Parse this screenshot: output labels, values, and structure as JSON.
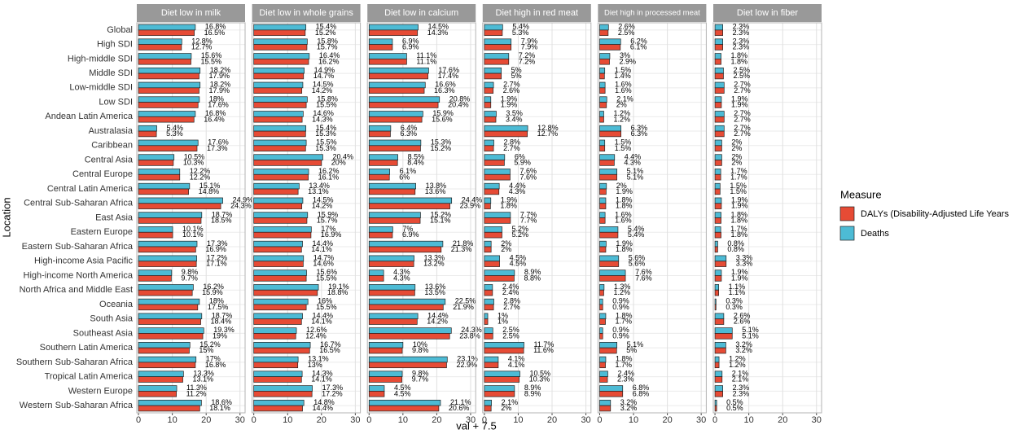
{
  "chart_data": {
    "type": "bar",
    "orientation": "horizontal",
    "x_label": "val + 7.5",
    "y_label": "Location",
    "legend_title": "Measure",
    "legend_position": "right",
    "grid": true,
    "xlim": [
      -0.5,
      31.5
    ],
    "xticks": [
      0,
      10,
      20,
      30
    ],
    "categories": [
      "Global",
      "High SDI",
      "High-middle SDI",
      "Middle SDI",
      "Low-middle SDI",
      "Low SDI",
      "Andean Latin America",
      "Australasia",
      "Caribbean",
      "Central Asia",
      "Central Europe",
      "Central Latin America",
      "Central Sub-Saharan Africa",
      "East Asia",
      "Eastern Europe",
      "Eastern Sub-Saharan Africa",
      "High-income Asia Pacific",
      "High-income North America",
      "North Africa and Middle East",
      "Oceania",
      "South Asia",
      "Southeast Asia",
      "Southern Latin America",
      "Southern Sub-Saharan Africa",
      "Tropical Latin America",
      "Western Europe",
      "Western Sub-Saharan Africa"
    ],
    "series": [
      {
        "name": "DALYs (Disability-Adjusted Life Years",
        "color": "#e64b35"
      },
      {
        "name": "Deaths",
        "color": "#4dbbd5"
      }
    ],
    "facets": [
      {
        "title": "Diet low in milk",
        "series": [
          {
            "values": [
              16.5,
              12.7,
              15.5,
              17.9,
              17.9,
              17.6,
              16.4,
              5.3,
              17.3,
              10.3,
              12.2,
              14.8,
              24.3,
              18.5,
              10.1,
              16.9,
              17.1,
              9.7,
              15.9,
              17.5,
              18.4,
              19,
              15,
              16.8,
              13.1,
              11.2,
              18.1
            ],
            "value_labels": [
              "16.5%",
              "12.7%",
              "15.5%",
              "17.9%",
              "17.9%",
              "17.6%",
              "16.4%",
              "5.3%",
              "17.3%",
              "10.3%",
              "12.2%",
              "14.8%",
              "24.3%",
              "18.5%",
              "10.1%",
              "16.9%",
              "17.1%",
              "9.7%",
              "15.9%",
              "17.5%",
              "18.4%",
              "19%",
              "15%",
              "16.8%",
              "13.1%",
              "11.2%",
              "18.1%"
            ]
          },
          {
            "values": [
              16.8,
              12.8,
              15.6,
              18.2,
              18.2,
              18,
              16.8,
              5.4,
              17.6,
              10.5,
              12.2,
              15.1,
              24.9,
              18.7,
              10.1,
              17.3,
              17.2,
              9.8,
              16.2,
              18,
              18.7,
              19.3,
              15.2,
              17,
              13.3,
              11.3,
              18.6
            ],
            "value_labels": [
              "16.8%",
              "12.8%",
              "15.6%",
              "18.2%",
              "18.2%",
              "18%",
              "16.8%",
              "5.4%",
              "17.6%",
              "10.5%",
              "12.2%",
              "15.1%",
              "24.9%",
              "18.7%",
              "10.1%",
              "17.3%",
              "17.2%",
              "9.8%",
              "16.2%",
              "18%",
              "18.7%",
              "19.3%",
              "15.2%",
              "17%",
              "13.3%",
              "11.3%",
              "18.6%"
            ]
          }
        ]
      },
      {
        "title": "Diet low in whole grains",
        "series": [
          {
            "values": [
              15.2,
              15.7,
              16.2,
              14.7,
              14.2,
              15.5,
              14.3,
              15.3,
              15.3,
              20,
              16.1,
              13.1,
              14.2,
              15.7,
              16.9,
              14.1,
              14.6,
              15.5,
              18.8,
              15.5,
              14.1,
              12.4,
              16.5,
              13,
              14.1,
              17.2,
              14.4
            ],
            "value_labels": [
              "15.2%",
              "15.7%",
              "16.2%",
              "14.7%",
              "14.2%",
              "15.5%",
              "14.3%",
              "15.3%",
              "15.3%",
              "20%",
              "16.1%",
              "13.1%",
              "14.2%",
              "15.7%",
              "16.9%",
              "14.1%",
              "14.6%",
              "15.5%",
              "18.8%",
              "15.5%",
              "14.1%",
              "12.4%",
              "16.5%",
              "13%",
              "14.1%",
              "17.2%",
              "14.4%"
            ]
          },
          {
            "values": [
              15.4,
              15.8,
              16.4,
              14.9,
              14.5,
              15.8,
              14.6,
              15.4,
              15.5,
              20.4,
              16.2,
              13.4,
              14.5,
              15.9,
              17,
              14.4,
              14.7,
              15.6,
              19.1,
              16,
              14.4,
              12.6,
              16.7,
              13.1,
              14.3,
              17.3,
              14.8
            ],
            "value_labels": [
              "15.4%",
              "15.8%",
              "16.4%",
              "14.9%",
              "14.5%",
              "15.8%",
              "14.6%",
              "15.4%",
              "15.5%",
              "20.4%",
              "16.2%",
              "13.4%",
              "14.5%",
              "15.9%",
              "17%",
              "14.4%",
              "14.7%",
              "15.6%",
              "19.1%",
              "16%",
              "14.4%",
              "12.6%",
              "16.7%",
              "13.1%",
              "14.3%",
              "17.3%",
              "14.8%"
            ]
          }
        ]
      },
      {
        "title": "Diet low in calcium",
        "series": [
          {
            "values": [
              14.3,
              6.9,
              11.1,
              17.4,
              16.3,
              20.4,
              15.6,
              6.3,
              15.2,
              8.4,
              6,
              13.6,
              23.9,
              15.1,
              6.9,
              21.3,
              13.2,
              4.3,
              13.5,
              21.9,
              14.2,
              23.8,
              9.8,
              22.9,
              9.7,
              4.5,
              20.6
            ],
            "value_labels": [
              "14.3%",
              "6.9%",
              "11.1%",
              "17.4%",
              "16.3%",
              "20.4%",
              "15.6%",
              "6.3%",
              "15.2%",
              "8.4%",
              "6%",
              "13.6%",
              "23.9%",
              "15.1%",
              "6.9%",
              "21.3%",
              "13.2%",
              "4.3%",
              "13.5%",
              "21.9%",
              "14.2%",
              "23.8%",
              "9.8%",
              "22.9%",
              "9.7%",
              "4.5%",
              "20.6%"
            ]
          },
          {
            "values": [
              14.5,
              6.9,
              11.1,
              17.6,
              16.6,
              20.8,
              15.9,
              6.4,
              15.3,
              8.5,
              6.1,
              13.8,
              24.4,
              15.2,
              7,
              21.8,
              13.3,
              4.3,
              13.6,
              22.5,
              14.4,
              24.3,
              10,
              23.1,
              9.8,
              4.5,
              21.1
            ],
            "value_labels": [
              "14.5%",
              "6.9%",
              "11.1%",
              "17.6%",
              "16.6%",
              "20.8%",
              "15.9%",
              "6.4%",
              "15.3%",
              "8.5%",
              "6.1%",
              "13.8%",
              "24.4%",
              "15.2%",
              "7%",
              "21.8%",
              "13.3%",
              "4.3%",
              "13.6%",
              "22.5%",
              "14.4%",
              "24.3%",
              "10%",
              "23.1%",
              "9.8%",
              "4.5%",
              "21.1%"
            ]
          }
        ]
      },
      {
        "title": "Diet high in red meat",
        "series": [
          {
            "values": [
              5.3,
              7.9,
              7.2,
              5,
              2.6,
              1.9,
              3.4,
              12.7,
              2.7,
              5.9,
              7.6,
              4.3,
              1.8,
              7.7,
              5.2,
              2,
              4.5,
              8.8,
              2.4,
              2.7,
              1,
              2.5,
              11.6,
              4.1,
              10.3,
              8.9,
              2
            ],
            "value_labels": [
              "5.3%",
              "7.9%",
              "7.2%",
              "5%",
              "2.6%",
              "1.9%",
              "3.4%",
              "12.7%",
              "2.7%",
              "5.9%",
              "7.6%",
              "4.3%",
              "1.8%",
              "7.7%",
              "5.2%",
              "2%",
              "4.5%",
              "8.8%",
              "2.4%",
              "2.7%",
              "1%",
              "2.5%",
              "11.6%",
              "4.1%",
              "10.3%",
              "8.9%",
              "2%"
            ]
          },
          {
            "values": [
              5.4,
              7.9,
              7.2,
              5,
              2.7,
              1.9,
              3.5,
              12.8,
              2.8,
              6,
              7.6,
              4.4,
              1.9,
              7.7,
              5.2,
              2,
              4.5,
              8.9,
              2.4,
              2.8,
              1,
              2.5,
              11.7,
              4.1,
              10.5,
              8.9,
              2.1
            ],
            "value_labels": [
              "5.4%",
              "7.9%",
              "7.2%",
              "5%",
              "2.7%",
              "1.9%",
              "3.5%",
              "12.8%",
              "2.8%",
              "6%",
              "7.6%",
              "4.4%",
              "1.9%",
              "7.7%",
              "5.2%",
              "2%",
              "4.5%",
              "8.9%",
              "2.4%",
              "2.8%",
              "1%",
              "2.5%",
              "11.7%",
              "4.1%",
              "10.5%",
              "8.9%",
              "2.1%"
            ]
          }
        ]
      },
      {
        "title": "Diet high in processed meat",
        "series": [
          {
            "values": [
              2.5,
              6.1,
              2.9,
              1.4,
              1.6,
              2,
              1.2,
              6.3,
              1.5,
              4.3,
              5.1,
              1.9,
              1.8,
              1.6,
              5.4,
              1.8,
              5.6,
              7.6,
              1.2,
              0.9,
              1.7,
              0.9,
              5,
              1.7,
              2.3,
              6.8,
              3.2
            ],
            "value_labels": [
              "2.5%",
              "6.1%",
              "2.9%",
              "1.4%",
              "1.6%",
              "2%",
              "1.2%",
              "6.3%",
              "1.5%",
              "4.3%",
              "5.1%",
              "1.9%",
              "1.8%",
              "1.6%",
              "5.4%",
              "1.8%",
              "5.6%",
              "7.6%",
              "1.2%",
              "0.9%",
              "1.7%",
              "0.9%",
              "5%",
              "1.7%",
              "2.3%",
              "6.8%",
              "3.2%"
            ]
          },
          {
            "values": [
              2.6,
              6.2,
              3,
              1.5,
              1.6,
              2.1,
              1.2,
              6.3,
              1.5,
              4.4,
              5.1,
              2,
              1.8,
              1.6,
              5.4,
              1.9,
              5.6,
              7.6,
              1.3,
              0.9,
              1.8,
              0.9,
              5.1,
              1.8,
              2.4,
              6.8,
              3.2
            ],
            "value_labels": [
              "2.6%",
              "6.2%",
              "3%",
              "1.5%",
              "1.6%",
              "2.1%",
              "1.2%",
              "6.3%",
              "1.5%",
              "4.4%",
              "5.1%",
              "2%",
              "1.8%",
              "1.6%",
              "5.4%",
              "1.9%",
              "5.6%",
              "7.6%",
              "1.3%",
              "0.9%",
              "1.8%",
              "0.9%",
              "5.1%",
              "1.8%",
              "2.4%",
              "6.8%",
              "3.2%"
            ]
          }
        ]
      },
      {
        "title": "Diet low in fiber",
        "series": [
          {
            "values": [
              2.3,
              2.3,
              1.8,
              2.5,
              2.7,
              1.9,
              2.7,
              2.7,
              2,
              2,
              1.7,
              1.5,
              1.9,
              1.8,
              1.8,
              0.8,
              3.3,
              1.9,
              1.1,
              0.3,
              2.6,
              5.1,
              3.2,
              1.2,
              2.1,
              2.3,
              0.5
            ],
            "value_labels": [
              "2.3%",
              "2.3%",
              "1.8%",
              "2.5%",
              "2.7%",
              "1.9%",
              "2.7%",
              "2.7%",
              "2%",
              "2%",
              "1.7%",
              "1.5%",
              "1.9%",
              "1.8%",
              "1.8%",
              "0.8%",
              "3.3%",
              "1.9%",
              "1.1%",
              "0.3%",
              "2.6%",
              "5.1%",
              "3.2%",
              "1.2%",
              "2.1%",
              "2.3%",
              "0.5%"
            ]
          },
          {
            "values": [
              2.3,
              2.3,
              1.8,
              2.5,
              2.7,
              1.9,
              2.7,
              2.7,
              2,
              2,
              1.7,
              1.5,
              1.9,
              1.8,
              1.7,
              0.8,
              3.3,
              1.9,
              1.1,
              0.3,
              2.6,
              5.1,
              3.2,
              1.2,
              2.1,
              2.3,
              0.5
            ],
            "value_labels": [
              "2.3%",
              "2.3%",
              "1.8%",
              "2.5%",
              "2.7%",
              "1.9%",
              "2.7%",
              "2.7%",
              "2%",
              "2%",
              "1.7%",
              "1.5%",
              "1.9%",
              "1.8%",
              "1.7%",
              "0.8%",
              "3.3%",
              "1.9%",
              "1.1%",
              "0.3%",
              "2.6%",
              "5.1%",
              "3.2%",
              "1.2%",
              "2.1%",
              "2.3%",
              "0.5%"
            ]
          }
        ]
      }
    ]
  }
}
